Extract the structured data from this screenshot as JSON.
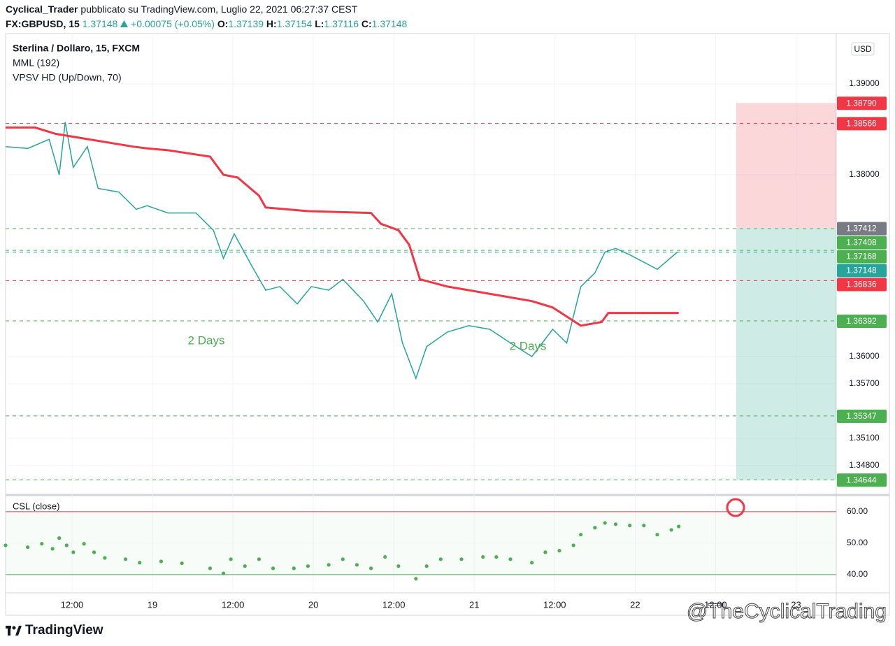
{
  "header": {
    "author": "Cyclical_Trader",
    "published": "pubblicato su TradingView.com, Luglio 22, 2021 06:27:37 CEST",
    "symbol": "FX:GBPUSD, 15",
    "last": "1.37148",
    "change": "+0.00075 (+0.05%)",
    "o_label": "O:",
    "o": "1.37139",
    "h_label": "H:",
    "h": "1.37154",
    "l_label": "L:",
    "l": "1.37116",
    "c_label": "C:",
    "c": "1.37148"
  },
  "chart_data": [
    {
      "type": "line",
      "currency": "USD",
      "grid": true,
      "xlim": [
        2.1,
        126
      ],
      "ylim": [
        1.345,
        1.395
      ],
      "xticks": [
        {
          "value": 12,
          "label": "12:00"
        },
        {
          "value": 24,
          "label": "19"
        },
        {
          "value": 36,
          "label": "12:00"
        },
        {
          "value": 48,
          "label": "20"
        },
        {
          "value": 60,
          "label": "12:00"
        },
        {
          "value": 72,
          "label": "21"
        },
        {
          "value": 84,
          "label": "12:00"
        },
        {
          "value": 96,
          "label": "22"
        },
        {
          "value": 108,
          "label": "12:00"
        },
        {
          "value": 120,
          "label": "23"
        }
      ],
      "yticks": [
        {
          "value": 1.39,
          "label": "1.39000"
        },
        {
          "value": 1.38,
          "label": "1.38000"
        },
        {
          "value": 1.36,
          "label": "1.36000"
        },
        {
          "value": 1.357,
          "label": "1.35700"
        },
        {
          "value": 1.351,
          "label": "1.35100"
        },
        {
          "value": 1.348,
          "label": "1.34800"
        }
      ],
      "series": [
        {
          "name": "Sterlina / Dollaro, 15, FXCM",
          "color": "#26a69a",
          "x": [
            2.1,
            5.4,
            8.6,
            10.1,
            11.0,
            12.2,
            14.3,
            15.9,
            19.0,
            21.6,
            23.2,
            26.3,
            30.5,
            33.1,
            34.6,
            36.2,
            38.8,
            40.9,
            43.0,
            45.6,
            47.7,
            50.3,
            52.4,
            55.5,
            57.6,
            59.7,
            61.3,
            63.3,
            64.9,
            68.0,
            71.2,
            74.3,
            77.4,
            80.6,
            83.7,
            85.8,
            87.9,
            90.0,
            91.5,
            93.1,
            95.2,
            99.3,
            102.3
          ],
          "values": [
            1.3831,
            1.3829,
            1.3839,
            1.38,
            1.3858,
            1.3808,
            1.3831,
            1.3785,
            1.3781,
            1.3762,
            1.3766,
            1.3758,
            1.3758,
            1.3739,
            1.3708,
            1.3735,
            1.37,
            1.3673,
            1.3677,
            1.3658,
            1.3677,
            1.3673,
            1.3685,
            1.3661,
            1.3638,
            1.3669,
            1.3615,
            1.3576,
            1.3611,
            1.3627,
            1.3634,
            1.363,
            1.3615,
            1.36,
            1.363,
            1.3615,
            1.3677,
            1.3692,
            1.3715,
            1.3719,
            1.3712,
            1.3696,
            1.3715
          ]
        },
        {
          "name": "MML (192)",
          "color": "#f23645",
          "x": [
            2.1,
            6.5,
            9.6,
            21.1,
            23.2,
            26.3,
            32.6,
            34.6,
            36.7,
            39.9,
            40.9,
            47.2,
            56.6,
            58.1,
            60.7,
            62.3,
            63.9,
            68.0,
            71.2,
            80.6,
            83.7,
            87.9,
            91.0,
            92.0,
            102.5
          ],
          "values": [
            1.3852,
            1.3852,
            1.3845,
            1.3831,
            1.3829,
            1.3827,
            1.382,
            1.38,
            1.3797,
            1.3777,
            1.3764,
            1.376,
            1.3758,
            1.3746,
            1.3739,
            1.3723,
            1.3685,
            1.3677,
            1.3673,
            1.3661,
            1.3654,
            1.3634,
            1.3638,
            1.3648,
            1.3648
          ]
        }
      ],
      "indicator": "VPSV HD (Up/Down, 70)",
      "annotations": [
        "2 Days",
        "2 Days"
      ],
      "annotation_color": "#4caf50",
      "price_tags": [
        {
          "value": 1.3879,
          "label": "1.38790",
          "color": "#f23645",
          "dashed": false
        },
        {
          "value": 1.38566,
          "label": "1.38566",
          "color": "#f23645",
          "dashed": true
        },
        {
          "value": 1.37412,
          "label": "1.37412",
          "color": "#787b86",
          "dashed": false
        },
        {
          "value": 1.37408,
          "label": "1.37408",
          "color": "#4caf50",
          "dashed": true
        },
        {
          "value": 1.37168,
          "label": "1.37168",
          "color": "#4caf50",
          "dashed": true
        },
        {
          "value": 1.37148,
          "label": "1.37148",
          "color": "#26a69a",
          "dashed": true
        },
        {
          "value": 1.36836,
          "label": "1.36836",
          "color": "#f23645",
          "dashed": true
        },
        {
          "value": 1.36392,
          "label": "1.36392",
          "color": "#4caf50",
          "dashed": true
        },
        {
          "value": 1.35347,
          "label": "1.35347",
          "color": "#4caf50",
          "dashed": true
        },
        {
          "value": 1.34644,
          "label": "1.34644",
          "color": "#4caf50",
          "dashed": true
        }
      ]
    },
    {
      "type": "scatter",
      "grid": true,
      "xlim": [
        2.1,
        126
      ],
      "ylim": [
        34.2,
        64.4
      ],
      "yticks": [
        {
          "value": 40,
          "label": "40.00"
        },
        {
          "value": 50,
          "label": "50.00"
        },
        {
          "value": 60,
          "label": "60.00"
        }
      ],
      "levels": [
        {
          "value": 60,
          "color": "#f23645"
        },
        {
          "value": 40,
          "color": "#4caf50"
        }
      ],
      "series": [
        {
          "name": "CSL (close)",
          "color": "#4caf50",
          "x": [
            2.1,
            5.4,
            7.5,
            9.1,
            10.1,
            11.2,
            12.2,
            13.8,
            15.3,
            16.9,
            20.0,
            22.1,
            25.3,
            28.4,
            32.6,
            34.6,
            35.7,
            37.8,
            39.9,
            42.0,
            45.1,
            47.2,
            50.3,
            52.4,
            54.5,
            56.6,
            58.7,
            60.7,
            63.3,
            64.9,
            67.0,
            70.1,
            73.3,
            75.3,
            77.4,
            80.6,
            82.6,
            84.7,
            86.8,
            87.9,
            90.0,
            91.5,
            93.1,
            95.2,
            97.3,
            99.3,
            101.4,
            102.5
          ],
          "values": [
            49.3,
            48.7,
            49.8,
            48.2,
            51.6,
            49.3,
            47.1,
            49.8,
            47.1,
            45.3,
            44.9,
            43.8,
            44.2,
            43.6,
            42.0,
            40.4,
            44.9,
            42.7,
            44.9,
            42.0,
            42.0,
            42.7,
            43.1,
            44.9,
            43.1,
            42.0,
            45.6,
            42.7,
            38.7,
            42.7,
            44.9,
            44.9,
            45.6,
            45.6,
            44.9,
            43.8,
            47.1,
            47.6,
            49.3,
            52.7,
            54.9,
            56.4,
            56.0,
            55.6,
            55.6,
            52.7,
            54.2,
            55.3
          ]
        }
      ]
    }
  ],
  "footer": {
    "brand": "TradingView",
    "watermark": "@TheCyclicalTrading"
  }
}
